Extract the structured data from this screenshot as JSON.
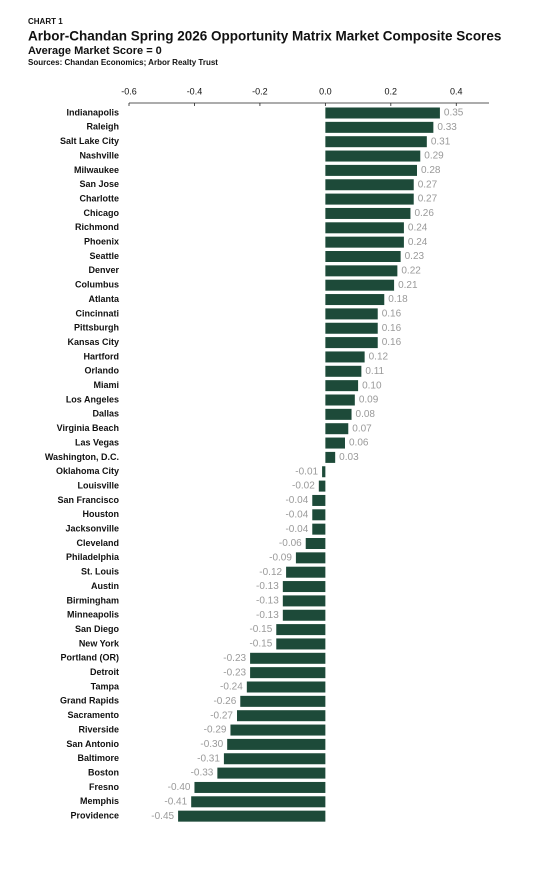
{
  "chart_data": {
    "type": "barh",
    "label": "CHART 1",
    "title": "Arbor-Chandan Spring 2026 Opportunity Matrix Market Composite Scores",
    "subtitle": "Average Market Score = 0",
    "source": "Sources: Chandan Economics; Arbor Realty Trust",
    "color": "#1d4a39",
    "categories": [
      "Indianapolis",
      "Raleigh",
      "Salt Lake City",
      "Nashville",
      "Milwaukee",
      "San Jose",
      "Charlotte",
      "Chicago",
      "Richmond",
      "Phoenix",
      "Seattle",
      "Denver",
      "Columbus",
      "Atlanta",
      "Cincinnati",
      "Pittsburgh",
      "Kansas City",
      "Hartford",
      "Orlando",
      "Miami",
      "Los Angeles",
      "Dallas",
      "Virginia Beach",
      "Las Vegas",
      "Washington, D.C.",
      "Oklahoma City",
      "Louisville",
      "San Francisco",
      "Houston",
      "Jacksonville",
      "Cleveland",
      "Philadelphia",
      "St. Louis",
      "Austin",
      "Birmingham",
      "Minneapolis",
      "San Diego",
      "New York",
      "Portland (OR)",
      "Detroit",
      "Tampa",
      "Grand Rapids",
      "Sacramento",
      "Riverside",
      "San Antonio",
      "Baltimore",
      "Boston",
      "Fresno",
      "Memphis",
      "Providence"
    ],
    "values": [
      0.35,
      0.33,
      0.31,
      0.29,
      0.28,
      0.27,
      0.27,
      0.26,
      0.24,
      0.24,
      0.23,
      0.22,
      0.21,
      0.18,
      0.16,
      0.16,
      0.16,
      0.12,
      0.11,
      0.1,
      0.09,
      0.08,
      0.07,
      0.06,
      0.03,
      -0.01,
      -0.02,
      -0.04,
      -0.04,
      -0.04,
      -0.06,
      -0.09,
      -0.12,
      -0.13,
      -0.13,
      -0.13,
      -0.15,
      -0.15,
      -0.23,
      -0.23,
      -0.24,
      -0.26,
      -0.27,
      -0.29,
      -0.3,
      -0.31,
      -0.33,
      -0.4,
      -0.41,
      -0.45
    ],
    "value_labels": [
      "0.35",
      "0.33",
      "0.31",
      "0.29",
      "0.28",
      "0.27",
      "0.27",
      "0.26",
      "0.24",
      "0.24",
      "0.23",
      "0.22",
      "0.21",
      "0.18",
      "0.16",
      "0.16",
      "0.16",
      "0.12",
      "0.11",
      "0.10",
      "0.09",
      "0.08",
      "0.07",
      "0.06",
      "0.03",
      "-0.01",
      "-0.02",
      "-0.04",
      "-0.04",
      "-0.04",
      "-0.06",
      "-0.09",
      "-0.12",
      "-0.13",
      "-0.13",
      "-0.13",
      "-0.15",
      "-0.15",
      "-0.23",
      "-0.23",
      "-0.24",
      "-0.26",
      "-0.27",
      "-0.29",
      "-0.30",
      "-0.31",
      "-0.33",
      "-0.40",
      "-0.41",
      "-0.45"
    ],
    "xlim": [
      -0.6,
      0.5
    ],
    "xticks": [
      -0.6,
      -0.4,
      -0.2,
      {
        "value": 0,
        "label": "0.0"
      },
      0.2,
      0.4
    ]
  }
}
